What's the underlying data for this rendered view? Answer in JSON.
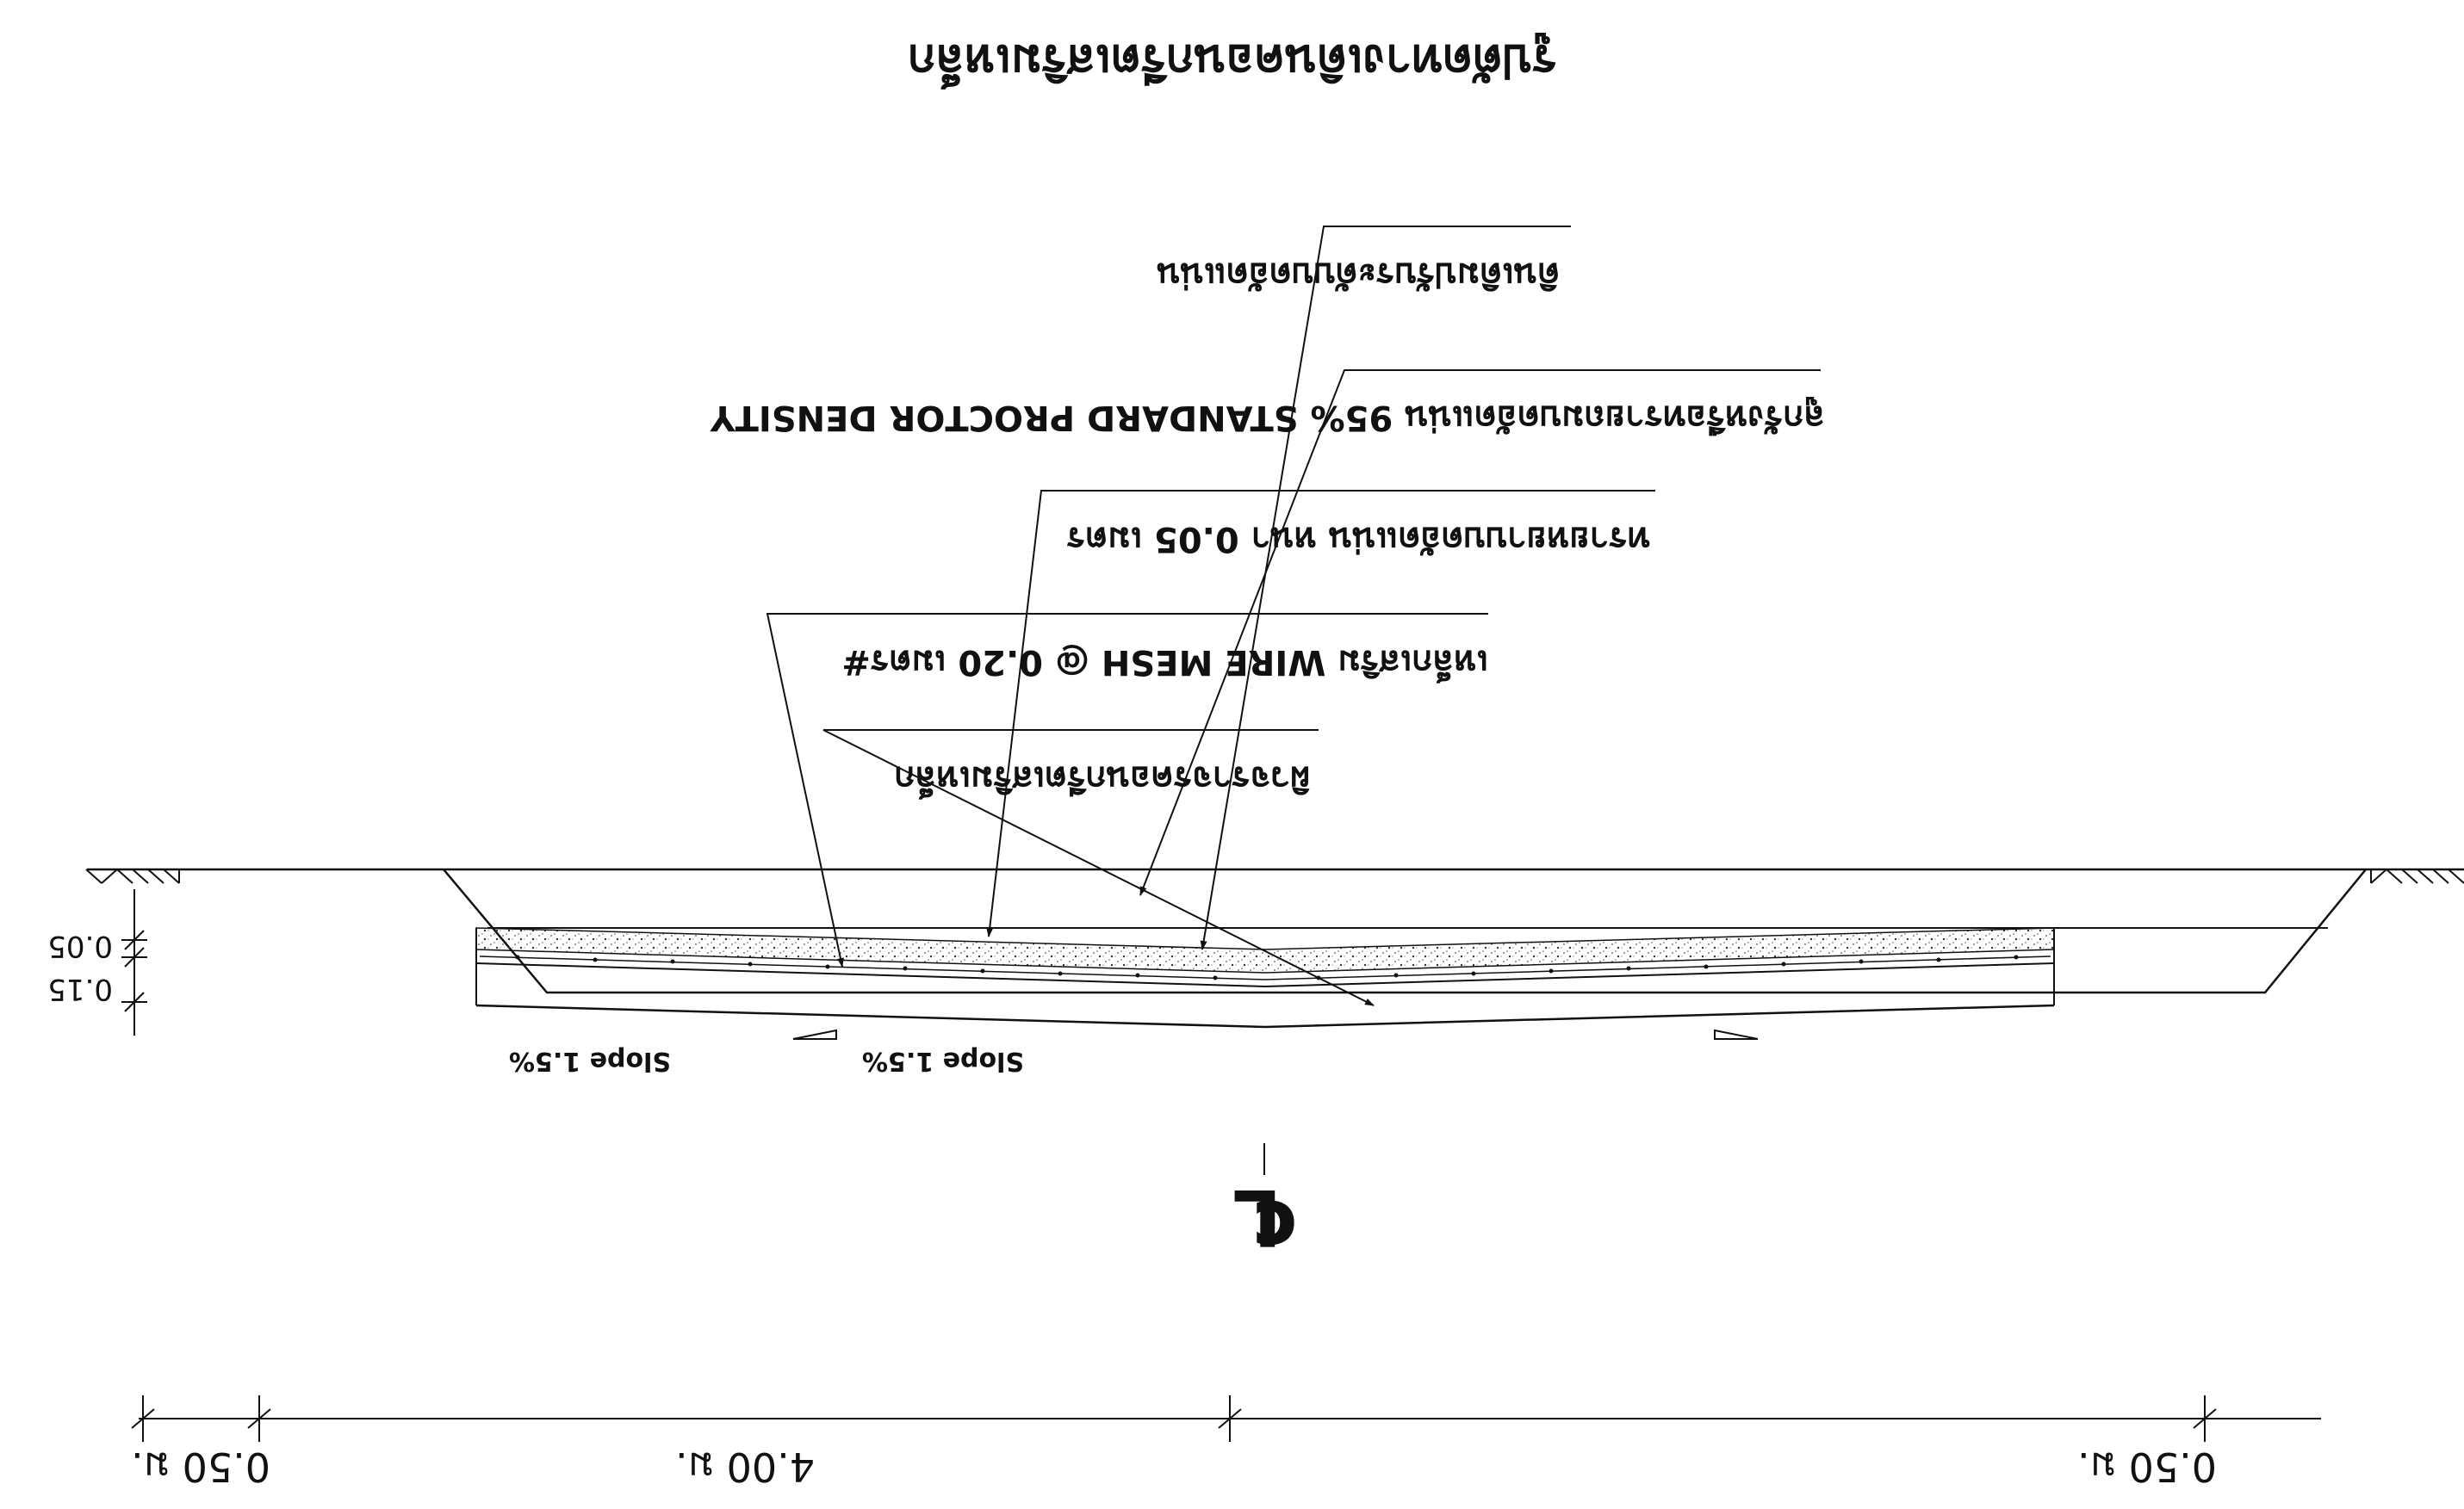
{
  "title": "รูปตัดทางเดินคอนกรีตเสริมเหล็ก",
  "layers": [
    {
      "id": "soil",
      "text": "ดินเดิมปรับระดับบดอัดแน่น"
    },
    {
      "id": "sand_fill",
      "text": "ลูกรังหรือทรายถมบดอัดแน่น 95% STANDARD PROCTOR DENSITY"
    },
    {
      "id": "sand_bed",
      "text": "ทรายหยาบบดอัดแน่น หนา 0.05 เมตร"
    },
    {
      "id": "wire_mesh",
      "text": "เหล็กเสริม  WIRE MESH @ 0.20 เมตร#"
    },
    {
      "id": "concrete",
      "text": "ผิวจราจรคอนกรีตเสริมเหล็ก"
    }
  ],
  "slopes": {
    "left": "Slope 1.5%",
    "right": "Slope 1.5%"
  },
  "thickness": {
    "top": "0.05",
    "bottom": "0.15"
  },
  "centerline_symbol": "℄",
  "dimensions": {
    "left": "0.50 ม.",
    "center": "4.00 ม.",
    "right": "0.50 ม."
  },
  "colors": {
    "ink": "#111111",
    "background": "#ffffff"
  }
}
